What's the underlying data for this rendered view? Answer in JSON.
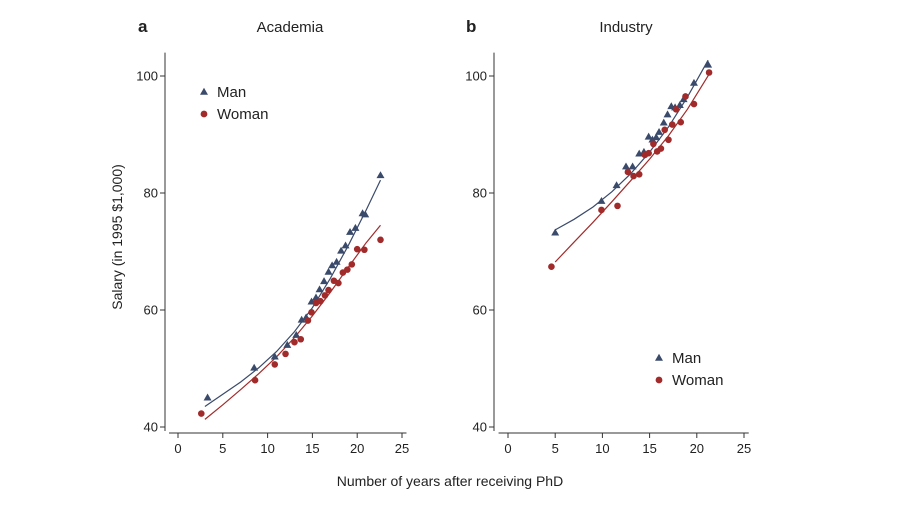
{
  "chart_data": [
    {
      "type": "scatter",
      "panel_label": "a",
      "title": "Academia",
      "xlabel": "Number of years after receiving PhD",
      "ylabel": "Salary (in 1995 $1,000)",
      "xlim": [
        -1,
        25.5
      ],
      "ylim": [
        39,
        104
      ],
      "xticks": [
        0,
        5,
        10,
        15,
        20,
        25
      ],
      "yticks": [
        40,
        60,
        80,
        100
      ],
      "grid": false,
      "legend": "top-left",
      "series": [
        {
          "name": "Man",
          "marker": "triangle",
          "color": "#3a4a6b",
          "x": [
            3.3,
            8.5,
            10.8,
            12.2,
            13.2,
            13.8,
            14.3,
            14.9,
            15.4,
            15.8,
            16.3,
            16.8,
            17.2,
            17.7,
            18.2,
            18.7,
            19.2,
            19.8,
            20.6,
            20.9,
            22.6
          ],
          "y": [
            45.0,
            50.1,
            52.0,
            54.0,
            55.7,
            58.3,
            58.7,
            61.4,
            62.1,
            63.5,
            64.9,
            66.5,
            67.6,
            68.2,
            70.1,
            71.0,
            73.3,
            74.0,
            76.5,
            76.3,
            83.0
          ],
          "fit": [
            [
              3,
              43.5
            ],
            [
              5,
              45.6
            ],
            [
              7,
              47.7
            ],
            [
              9,
              50.1
            ],
            [
              11,
              52.9
            ],
            [
              13,
              56.3
            ],
            [
              15,
              60.4
            ],
            [
              17,
              65.4
            ],
            [
              19,
              71.0
            ],
            [
              21,
              77.1
            ],
            [
              22.6,
              82.2
            ]
          ]
        },
        {
          "name": "Woman",
          "marker": "circle",
          "color": "#a12b2b",
          "x": [
            2.6,
            8.6,
            10.8,
            12.0,
            13.0,
            13.7,
            14.5,
            14.9,
            15.4,
            15.9,
            16.4,
            16.8,
            17.4,
            17.9,
            18.4,
            18.9,
            19.4,
            20.0,
            20.8,
            22.6
          ],
          "y": [
            42.3,
            48.0,
            50.7,
            52.5,
            54.5,
            55.0,
            58.2,
            59.6,
            61.2,
            61.5,
            62.5,
            63.4,
            65.0,
            64.6,
            66.4,
            66.9,
            67.8,
            70.4,
            70.3,
            72.0
          ],
          "fit": [
            [
              3,
              41.3
            ],
            [
              5,
              43.8
            ],
            [
              7,
              46.4
            ],
            [
              9,
              49.1
            ],
            [
              11,
              52.0
            ],
            [
              13,
              55.3
            ],
            [
              15,
              59.0
            ],
            [
              17,
              63.0
            ],
            [
              19,
              67.3
            ],
            [
              21,
              71.5
            ],
            [
              22.6,
              74.5
            ]
          ]
        }
      ]
    },
    {
      "type": "scatter",
      "panel_label": "b",
      "title": "Industry",
      "xlabel": "Number of years after receiving PhD",
      "ylabel": "",
      "xlim": [
        -1,
        25.5
      ],
      "ylim": [
        39,
        104
      ],
      "xticks": [
        0,
        5,
        10,
        15,
        20,
        25
      ],
      "yticks": [
        40,
        60,
        80,
        100
      ],
      "grid": false,
      "legend": "bottom-right",
      "series": [
        {
          "name": "Man",
          "marker": "triangle",
          "color": "#3a4a6b",
          "x": [
            5.0,
            9.9,
            11.5,
            12.5,
            13.2,
            13.9,
            14.4,
            14.9,
            15.3,
            15.7,
            16.0,
            16.5,
            16.9,
            17.3,
            17.7,
            18.2,
            18.6,
            19.7,
            21.2
          ],
          "y": [
            73.2,
            78.6,
            81.3,
            84.5,
            84.5,
            86.7,
            87.0,
            89.6,
            89.1,
            89.5,
            90.4,
            92.0,
            93.4,
            94.8,
            94.6,
            95.0,
            96.0,
            98.8,
            101.9
          ],
          "fit": [
            [
              5,
              73.7
            ],
            [
              7,
              75.5
            ],
            [
              9,
              77.6
            ],
            [
              11,
              80.2
            ],
            [
              13,
              83.3
            ],
            [
              15,
              87.0
            ],
            [
              17,
              91.3
            ],
            [
              19,
              96.4
            ],
            [
              21.2,
              102.7
            ]
          ]
        },
        {
          "name": "Woman",
          "marker": "circle",
          "color": "#a12b2b",
          "x": [
            4.6,
            9.9,
            11.6,
            12.7,
            13.3,
            13.9,
            14.5,
            14.9,
            15.4,
            15.8,
            16.2,
            16.6,
            17.0,
            17.4,
            17.8,
            18.3,
            18.8,
            19.7,
            21.3
          ],
          "y": [
            67.4,
            77.1,
            77.8,
            83.6,
            82.9,
            83.2,
            86.5,
            86.8,
            88.4,
            87.1,
            87.6,
            90.8,
            89.1,
            91.7,
            94.3,
            92.1,
            96.5,
            95.2,
            100.6
          ],
          "fit": [
            [
              5,
              68.2
            ],
            [
              7,
              71.6
            ],
            [
              9,
              75.0
            ],
            [
              11,
              78.5
            ],
            [
              13,
              82.1
            ],
            [
              15,
              85.8
            ],
            [
              17,
              89.8
            ],
            [
              19,
              94.3
            ],
            [
              21.3,
              100.3
            ]
          ]
        }
      ]
    }
  ],
  "shared_xlabel": "Number of years after receiving PhD"
}
